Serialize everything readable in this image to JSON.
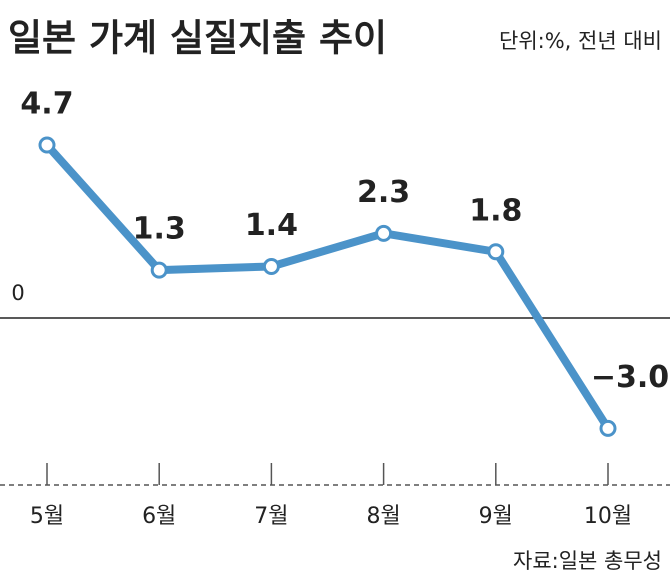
{
  "chart_data": {
    "type": "line",
    "title": "일본 가계 실질지출 추이",
    "subtitle": "단위:%, 전년 대비",
    "source": "자료:일본 총무성",
    "categories": [
      "5월",
      "6월",
      "7월",
      "8월",
      "9월",
      "10월"
    ],
    "values": [
      4.7,
      1.3,
      1.4,
      2.3,
      1.8,
      -3.0
    ],
    "value_labels": [
      "4.7",
      "1.3",
      "1.4",
      "2.3",
      "1.8",
      "−3.0"
    ],
    "color": "#4b93c9",
    "ylim": [
      -4.5,
      6
    ],
    "yticks": [
      0
    ],
    "grid": true
  }
}
